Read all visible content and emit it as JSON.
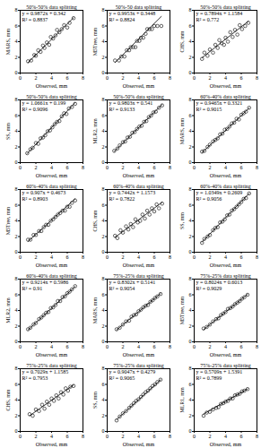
{
  "chart_data": [
    {
      "type": "scatter",
      "title": "50%-50% data splitting",
      "annotations": [
        "y = 0.9872x + 0.342",
        "R² = 0.8837"
      ],
      "trendline": {
        "slope": 0.9872,
        "intercept": 0.342
      },
      "x_label": "Observed, mm",
      "y_label": "MARS, mm",
      "xlim": [
        0,
        8
      ],
      "ylim": [
        0,
        8
      ],
      "xticks": [
        0,
        2,
        4,
        6,
        8
      ],
      "yticks": [
        0,
        2,
        4,
        6,
        8
      ],
      "color": "#000000",
      "marker": "circle",
      "x": [
        1.0,
        1.4,
        1.8,
        2.0,
        2.3,
        2.6,
        2.9,
        3.1,
        3.4,
        3.7,
        3.9,
        4.2,
        4.5,
        4.7,
        5.0,
        5.3,
        5.6,
        6.0,
        6.3,
        6.8
      ],
      "y": [
        1.5,
        1.6,
        2.3,
        2.2,
        2.9,
        2.7,
        3.5,
        3.2,
        3.9,
        3.6,
        4.6,
        4.4,
        4.8,
        5.5,
        5.2,
        5.6,
        6.1,
        5.8,
        6.4,
        7.0
      ]
    },
    {
      "type": "scatter",
      "title": "50%-50 data splitting",
      "annotations": [
        "y = 0.9953x + 0.3448",
        "R² = 0.8824"
      ],
      "trendline": {
        "slope": 0.9953,
        "intercept": 0.3448
      },
      "x_label": "Observed, mm",
      "y_label": "M5Tree, mm",
      "xlim": [
        0,
        8
      ],
      "ylim": [
        0,
        8
      ],
      "xticks": [
        0,
        2,
        4,
        6,
        8
      ],
      "yticks": [
        0,
        2,
        4,
        6,
        8
      ],
      "color": "#000000",
      "marker": "circle",
      "x": [
        1.0,
        1.5,
        1.8,
        2.2,
        2.5,
        2.8,
        3.0,
        3.3,
        3.6,
        3.8,
        4.1,
        4.3,
        4.6,
        4.9,
        5.1,
        5.4,
        5.7,
        6.0,
        6.4,
        6.9
      ],
      "y": [
        1.6,
        1.6,
        2.1,
        2.1,
        2.9,
        2.9,
        3.3,
        3.3,
        3.3,
        4.1,
        4.1,
        4.5,
        4.5,
        5.0,
        5.6,
        5.6,
        5.6,
        6.0,
        6.0,
        6.0
      ]
    },
    {
      "type": "scatter",
      "title": "50%-50% data splitting",
      "annotations": [
        "y = 0.7894x + 1.1584",
        "R² = 0.772"
      ],
      "trendline": {
        "slope": 0.7894,
        "intercept": 1.1584
      },
      "x_label": "Observed, mm",
      "y_label": "CHS, mm",
      "xlim": [
        0,
        8
      ],
      "ylim": [
        0,
        8
      ],
      "xticks": [
        0,
        2,
        4,
        6,
        8
      ],
      "yticks": [
        0,
        2,
        4,
        6,
        8
      ],
      "color": "#000000",
      "marker": "circle",
      "x": [
        1.0,
        1.3,
        1.7,
        2.0,
        2.4,
        2.7,
        3.0,
        3.2,
        3.5,
        3.8,
        4.0,
        4.3,
        4.6,
        4.9,
        5.2,
        5.5,
        5.8,
        6.1,
        6.5,
        6.9
      ],
      "y": [
        1.8,
        2.6,
        2.2,
        3.0,
        2.6,
        3.6,
        3.2,
        4.2,
        3.8,
        3.6,
        4.5,
        4.0,
        5.2,
        4.6,
        5.5,
        4.9,
        6.1,
        5.6,
        6.0,
        6.4
      ]
    },
    {
      "type": "scatter",
      "title": "50%-50% data splitting",
      "annotations": [
        "y = 1.0661x + 0.199",
        "R² = 0.9096"
      ],
      "trendline": {
        "slope": 1.0661,
        "intercept": 0.199
      },
      "x_label": "Observed, mm",
      "y_label": "SS, mm",
      "xlim": [
        0,
        8
      ],
      "ylim": [
        0,
        8
      ],
      "xticks": [
        0,
        2,
        4,
        6,
        8
      ],
      "yticks": [
        0,
        2,
        4,
        6,
        8
      ],
      "color": "#000000",
      "marker": "circle",
      "x": [
        0.9,
        1.3,
        1.6,
        2.0,
        2.3,
        2.6,
        2.9,
        3.2,
        3.5,
        3.8,
        4.1,
        4.4,
        4.7,
        5.0,
        5.3,
        5.6,
        5.9,
        6.2,
        6.6,
        7.0
      ],
      "y": [
        1.2,
        1.7,
        1.9,
        2.5,
        2.4,
        3.1,
        3.2,
        3.5,
        4.0,
        4.1,
        4.5,
        4.9,
        5.2,
        5.3,
        5.9,
        6.3,
        6.2,
        6.9,
        7.1,
        7.5
      ]
    },
    {
      "type": "scatter",
      "title": "50%-50% data splitting",
      "annotations": [
        "y = 0.9803x + 0.541",
        "R² = 0.9133"
      ],
      "trendline": {
        "slope": 0.9803,
        "intercept": 0.541
      },
      "x_label": "Observed, mm",
      "y_label": "MLR2, mm",
      "xlim": [
        0,
        8
      ],
      "ylim": [
        0,
        8
      ],
      "xticks": [
        0,
        2,
        4,
        6,
        8
      ],
      "yticks": [
        0,
        2,
        4,
        6,
        8
      ],
      "color": "#000000",
      "marker": "circle",
      "x": [
        0.9,
        1.3,
        1.6,
        2.0,
        2.3,
        2.6,
        2.9,
        3.2,
        3.5,
        3.8,
        4.1,
        4.4,
        4.7,
        5.0,
        5.3,
        5.6,
        5.9,
        6.2,
        6.6,
        7.0
      ],
      "y": [
        1.5,
        1.8,
        2.2,
        2.6,
        2.7,
        3.2,
        3.3,
        3.8,
        3.9,
        4.3,
        4.6,
        4.7,
        5.2,
        5.3,
        5.8,
        6.0,
        6.4,
        6.5,
        7.0,
        7.3
      ]
    },
    {
      "type": "scatter",
      "title": "60%-40% data splitting",
      "annotations": [
        "y = 0.9465x + 0.3321",
        "R² = 0.9015"
      ],
      "trendline": {
        "slope": 0.9465,
        "intercept": 0.3321
      },
      "x_label": "Observed, mm",
      "y_label": "MARS, mm",
      "xlim": [
        0,
        8
      ],
      "ylim": [
        0,
        8
      ],
      "xticks": [
        0,
        2,
        4,
        6,
        8
      ],
      "yticks": [
        0,
        2,
        4,
        6,
        8
      ],
      "color": "#000000",
      "marker": "circle",
      "x": [
        1.0,
        1.3,
        1.7,
        2.0,
        2.4,
        2.7,
        3.0,
        3.3,
        3.6,
        3.9,
        4.2,
        4.5,
        4.8,
        5.1,
        5.4,
        5.7,
        6.0,
        6.3,
        6.6,
        7.0
      ],
      "y": [
        1.4,
        1.5,
        2.0,
        2.3,
        2.7,
        2.9,
        3.1,
        3.6,
        3.7,
        4.2,
        4.3,
        4.6,
        5.0,
        5.1,
        5.6,
        5.5,
        6.1,
        6.3,
        6.5,
        7.0
      ]
    },
    {
      "type": "scatter",
      "title": "60%-40% data splitting",
      "annotations": [
        "y = 0.907x + 0.4673",
        "R² = 0.8903"
      ],
      "trendline": {
        "slope": 0.907,
        "intercept": 0.4673
      },
      "x_label": "Observed, mm",
      "y_label": "M5Tree, mm",
      "xlim": [
        0,
        8
      ],
      "ylim": [
        0,
        8
      ],
      "xticks": [
        0,
        2,
        4,
        6,
        8
      ],
      "yticks": [
        0,
        2,
        4,
        6,
        8
      ],
      "color": "#000000",
      "marker": "circle",
      "x": [
        1.0,
        1.3,
        1.7,
        2.0,
        2.4,
        2.7,
        3.0,
        3.3,
        3.6,
        3.9,
        4.2,
        4.5,
        4.8,
        5.1,
        5.4,
        5.7,
        6.0,
        6.3,
        6.6,
        7.0
      ],
      "y": [
        1.6,
        1.6,
        2.2,
        2.2,
        2.7,
        2.7,
        3.2,
        3.5,
        3.5,
        4.0,
        4.2,
        4.5,
        4.8,
        5.0,
        5.3,
        5.3,
        5.8,
        5.8,
        6.3,
        6.6
      ]
    },
    {
      "type": "scatter",
      "title": "60%-40% data splitting",
      "annotations": [
        "y = 0.7442x + 1.1573",
        "R² = 0.7822"
      ],
      "trendline": {
        "slope": 0.7442,
        "intercept": 1.1573
      },
      "x_label": "Observed, mm",
      "y_label": "CHS, mm",
      "xlim": [
        0,
        8
      ],
      "ylim": [
        0,
        8
      ],
      "xticks": [
        0,
        2,
        4,
        6,
        8
      ],
      "yticks": [
        0,
        2,
        4,
        6,
        8
      ],
      "color": "#000000",
      "marker": "circle",
      "x": [
        1.0,
        1.3,
        1.7,
        2.0,
        2.4,
        2.7,
        3.0,
        3.3,
        3.6,
        3.9,
        4.2,
        4.5,
        4.8,
        5.1,
        5.4,
        5.7,
        6.0,
        6.3,
        6.6,
        7.0
      ],
      "y": [
        2.1,
        1.8,
        2.8,
        2.5,
        3.3,
        2.9,
        3.6,
        3.2,
        4.2,
        3.8,
        4.0,
        4.8,
        4.3,
        5.3,
        4.8,
        5.6,
        5.2,
        6.1,
        5.6,
        6.2
      ]
    },
    {
      "type": "scatter",
      "title": "60%-40% data splitting",
      "annotations": [
        "y = 1.0349x + 0.2609",
        "R² = 0.9056"
      ],
      "trendline": {
        "slope": 1.0349,
        "intercept": 0.2609
      },
      "x_label": "Observed, mm",
      "y_label": "SS, mm",
      "xlim": [
        0,
        8
      ],
      "ylim": [
        0,
        8
      ],
      "xticks": [
        0,
        2,
        4,
        6,
        8
      ],
      "yticks": [
        0,
        2,
        4,
        6,
        8
      ],
      "color": "#000000",
      "marker": "circle",
      "x": [
        1.0,
        1.3,
        1.7,
        2.0,
        2.4,
        2.7,
        3.0,
        3.3,
        3.6,
        3.9,
        4.2,
        4.5,
        4.8,
        5.1,
        5.4,
        5.7,
        6.0,
        6.3,
        6.6,
        7.0
      ],
      "y": [
        1.2,
        1.7,
        2.0,
        2.2,
        2.8,
        3.1,
        3.2,
        3.8,
        3.9,
        4.2,
        4.7,
        4.8,
        5.3,
        5.5,
        5.8,
        6.1,
        6.4,
        6.8,
        6.9,
        7.5
      ]
    },
    {
      "type": "scatter",
      "title": "60%-40% data splitting",
      "annotations": [
        "y = 0.9214x + 0.5986",
        "R² = 0.91"
      ],
      "trendline": {
        "slope": 0.9214,
        "intercept": 0.5986
      },
      "x_label": "Observed, mm",
      "y_label": "MLR2, mm",
      "xlim": [
        0,
        8
      ],
      "ylim": [
        0,
        8
      ],
      "xticks": [
        0,
        2,
        4,
        6,
        8
      ],
      "yticks": [
        0,
        2,
        4,
        6,
        8
      ],
      "color": "#000000",
      "marker": "circle",
      "x": [
        1.0,
        1.3,
        1.7,
        2.0,
        2.4,
        2.7,
        3.0,
        3.3,
        3.6,
        3.9,
        4.2,
        4.5,
        4.8,
        5.1,
        5.4,
        5.7,
        6.0,
        6.3,
        6.6,
        7.0
      ],
      "y": [
        1.6,
        1.8,
        2.2,
        2.4,
        2.9,
        3.1,
        3.4,
        3.7,
        3.8,
        4.3,
        4.4,
        4.7,
        5.2,
        5.2,
        5.7,
        5.8,
        6.2,
        6.4,
        6.7,
        7.1
      ]
    },
    {
      "type": "scatter",
      "title": "75%-25% data splitting",
      "annotations": [
        "y = 0.8302x + 0.5141",
        "R² = 0.9054"
      ],
      "trendline": {
        "slope": 0.8302,
        "intercept": 0.5141
      },
      "x_label": "Observed, mm",
      "y_label": "MARS, mm",
      "xlim": [
        0,
        8
      ],
      "ylim": [
        0,
        8
      ],
      "xticks": [
        0,
        2,
        4,
        6,
        8
      ],
      "yticks": [
        0,
        2,
        4,
        6,
        8
      ],
      "color": "#000000",
      "marker": "circle",
      "x": [
        1.2,
        1.6,
        2.0,
        2.4,
        2.8,
        3.1,
        3.4,
        3.7,
        4.0,
        4.3,
        4.6,
        4.9,
        5.2,
        5.5,
        5.8,
        6.1,
        6.4,
        6.8
      ],
      "y": [
        1.6,
        1.8,
        2.2,
        2.6,
        2.7,
        3.2,
        3.4,
        3.5,
        3.9,
        4.1,
        4.4,
        4.6,
        4.7,
        5.1,
        5.3,
        5.6,
        5.8,
        6.1
      ]
    },
    {
      "type": "scatter",
      "title": "75%-25% data splitting",
      "annotations": [
        "y = 0.8024x + 0.6013",
        "R² = 0.9029"
      ],
      "trendline": {
        "slope": 0.8024,
        "intercept": 0.6013
      },
      "x_label": "Observed, mm",
      "y_label": "M5Tree, mm",
      "xlim": [
        0,
        8
      ],
      "ylim": [
        0,
        8
      ],
      "xticks": [
        0,
        2,
        4,
        6,
        8
      ],
      "yticks": [
        0,
        2,
        4,
        6,
        8
      ],
      "color": "#000000",
      "marker": "circle",
      "x": [
        1.2,
        1.6,
        2.0,
        2.4,
        2.8,
        3.1,
        3.4,
        3.7,
        4.0,
        4.3,
        4.6,
        4.9,
        5.2,
        5.5,
        5.8,
        6.1,
        6.4,
        6.8
      ],
      "y": [
        1.7,
        1.9,
        2.2,
        2.6,
        2.9,
        3.0,
        3.4,
        3.6,
        3.8,
        4.2,
        4.3,
        4.5,
        4.8,
        5.0,
        5.2,
        5.5,
        5.7,
        6.0
      ]
    },
    {
      "type": "scatter",
      "title": "75%-25% data splitting",
      "annotations": [
        "y = 0.7029x + 1.1585",
        "R² = 0.7953"
      ],
      "trendline": {
        "slope": 0.7029,
        "intercept": 1.1585
      },
      "x_label": "Observed, mm",
      "y_label": "CHS, mm",
      "xlim": [
        0,
        8
      ],
      "ylim": [
        0,
        8
      ],
      "xticks": [
        0,
        2,
        4,
        6,
        8
      ],
      "yticks": [
        0,
        2,
        4,
        6,
        8
      ],
      "color": "#000000",
      "marker": "circle",
      "x": [
        1.2,
        1.6,
        2.0,
        2.4,
        2.8,
        3.1,
        3.4,
        3.7,
        4.0,
        4.3,
        4.6,
        4.9,
        5.2,
        5.5,
        5.8,
        6.1,
        6.4,
        6.8
      ],
      "y": [
        2.2,
        2.0,
        2.8,
        2.6,
        3.4,
        2.9,
        3.8,
        3.4,
        4.2,
        3.9,
        4.6,
        4.2,
        5.0,
        4.7,
        5.5,
        5.2,
        5.7,
        5.8
      ]
    },
    {
      "type": "scatter",
      "title": "75%-25% data splitting",
      "annotations": [
        "y = 0.9047x + 0.4279",
        "R² = 0.9065"
      ],
      "trendline": {
        "slope": 0.9047,
        "intercept": 0.4279
      },
      "x_label": "Observed, mm",
      "y_label": "SS, mm",
      "xlim": [
        0,
        8
      ],
      "ylim": [
        0,
        8
      ],
      "xticks": [
        0,
        2,
        4,
        6,
        8
      ],
      "yticks": [
        0,
        2,
        4,
        6,
        8
      ],
      "color": "#000000",
      "marker": "circle",
      "x": [
        1.2,
        1.6,
        2.0,
        2.4,
        2.8,
        3.1,
        3.4,
        3.7,
        4.0,
        4.3,
        4.6,
        4.9,
        5.2,
        5.5,
        5.8,
        6.1,
        6.4,
        6.8
      ],
      "y": [
        1.4,
        1.9,
        2.3,
        2.6,
        3.0,
        3.3,
        3.6,
        3.9,
        4.1,
        4.4,
        4.7,
        5.0,
        5.2,
        5.5,
        5.8,
        6.0,
        6.3,
        6.6
      ]
    },
    {
      "type": "scatter",
      "title": "75%-25% data splitting",
      "annotations": [
        "y = 0.5709x + 1.5391",
        "R² = 0.7899"
      ],
      "trendline": {
        "slope": 0.5709,
        "intercept": 1.5391
      },
      "x_label": "Observed, mm",
      "y_label": "MLR1, mm",
      "xlim": [
        0,
        8
      ],
      "ylim": [
        0,
        8
      ],
      "xticks": [
        0,
        2,
        4,
        6,
        8
      ],
      "yticks": [
        0,
        2,
        4,
        6,
        8
      ],
      "color": "#000000",
      "marker": "circle",
      "x": [
        1.2,
        1.6,
        2.0,
        2.4,
        2.8,
        3.1,
        3.4,
        3.7,
        4.0,
        4.3,
        4.6,
        4.9,
        5.2,
        5.5,
        5.8,
        6.1,
        6.4,
        6.8
      ],
      "y": [
        2.0,
        2.4,
        2.5,
        2.8,
        3.0,
        3.1,
        3.5,
        3.6,
        3.8,
        3.9,
        4.2,
        4.2,
        4.6,
        4.7,
        4.8,
        5.1,
        5.2,
        5.4
      ]
    }
  ]
}
